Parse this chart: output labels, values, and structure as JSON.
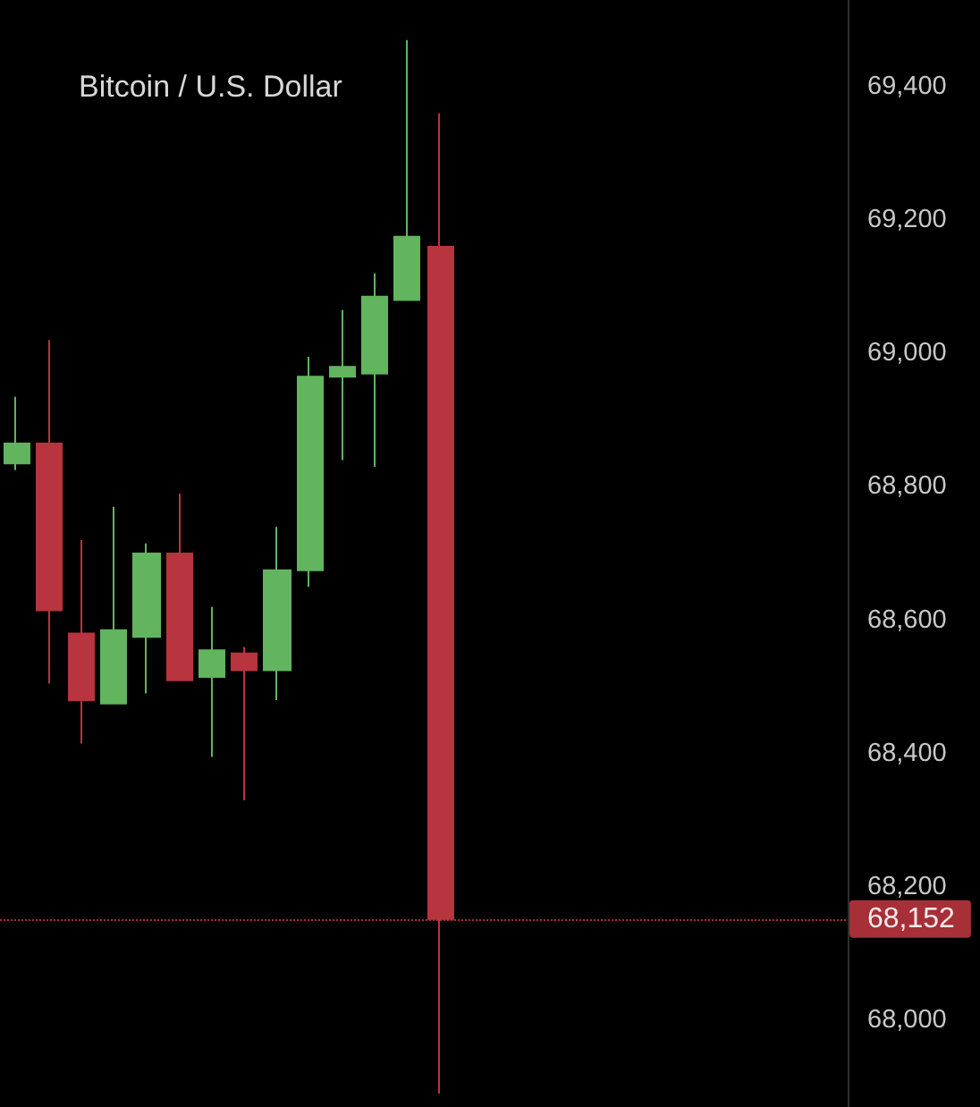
{
  "chart_data": {
    "type": "candlestick",
    "title": "Bitcoin / U.S. Dollar",
    "categories": [
      null,
      null,
      null,
      null,
      null,
      null,
      null,
      null,
      null,
      null,
      null,
      null,
      null,
      null,
      null,
      null,
      null,
      null,
      null,
      null,
      null,
      null,
      null,
      null,
      null,
      null
    ],
    "ohlc": [
      [
        68835,
        68935,
        68825,
        68865
      ],
      [
        68865,
        69020,
        68505,
        68615
      ],
      [
        68580,
        68720,
        68415,
        68480
      ],
      [
        68475,
        68770,
        68475,
        68585
      ],
      [
        68575,
        68715,
        68490,
        68700
      ],
      [
        68700,
        68790,
        68510,
        68510
      ],
      [
        68515,
        68620,
        68395,
        68555
      ],
      [
        68550,
        68560,
        68330,
        68525
      ],
      [
        68525,
        68740,
        68480,
        68675
      ],
      [
        68675,
        68995,
        68650,
        68965
      ],
      [
        68965,
        69065,
        68840,
        68980
      ],
      [
        68970,
        69120,
        68830,
        69085
      ],
      [
        69080,
        69470,
        69080,
        69175
      ],
      [
        69160,
        69360,
        67890,
        68152
      ],
      null,
      null,
      null,
      null,
      null,
      null,
      null,
      null,
      null,
      null,
      null,
      null
    ],
    "colors": [
      "#62b45f",
      "#b8343e",
      "#b8343e",
      "#62b45f",
      "#62b45f",
      "#b8343e",
      "#62b45f",
      "#b8343e",
      "#62b45f",
      "#62b45f",
      "#62b45f",
      "#62b45f",
      "#62b45f",
      "#b8343e",
      null,
      null,
      null,
      null,
      null,
      null,
      null,
      null,
      null,
      null,
      null,
      null
    ],
    "ylim": [
      67870,
      69530
    ],
    "yticks": [
      {
        "value": 68000,
        "label": "68,000"
      },
      {
        "value": 68200,
        "label": "68,200"
      },
      {
        "value": 68400,
        "label": "68,400"
      },
      {
        "value": 68600,
        "label": "68,600"
      },
      {
        "value": 68800,
        "label": "68,800"
      },
      {
        "value": 69000,
        "label": "69,000"
      },
      {
        "value": 69200,
        "label": "69,200"
      },
      {
        "value": 69400,
        "label": "69,400"
      }
    ],
    "tick_labels": "y",
    "ref_lines": [
      {
        "axis": "y",
        "value": 68152,
        "label": "68,152",
        "color": "#b8343e",
        "line_style": "dotted"
      }
    ]
  }
}
